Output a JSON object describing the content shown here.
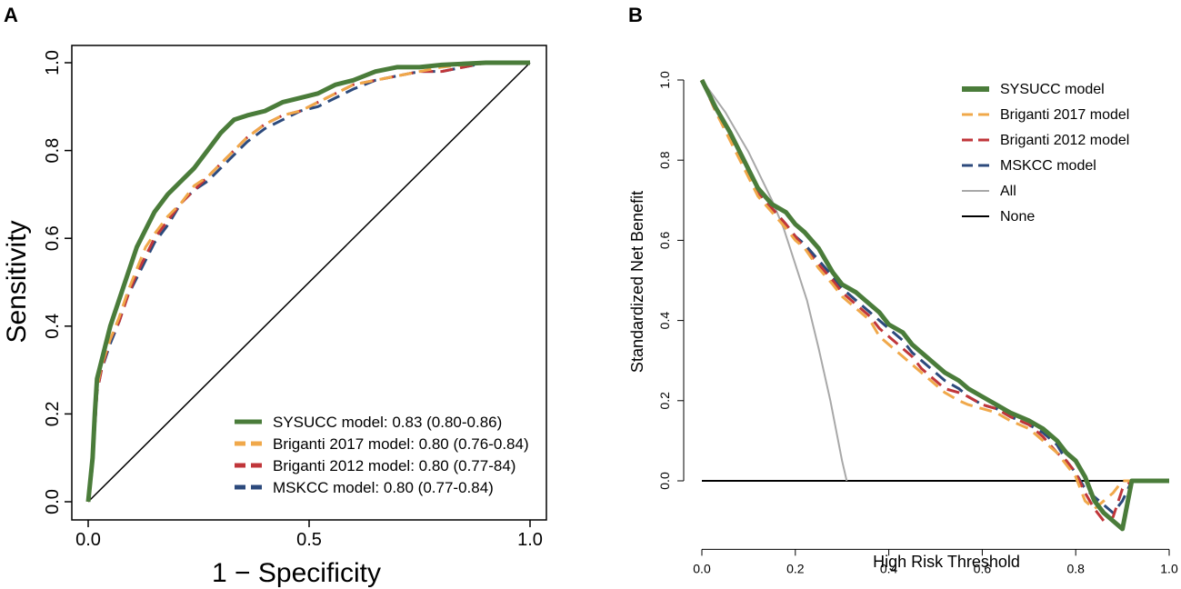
{
  "chart_data": [
    {
      "panel": "A",
      "type": "line",
      "title": "",
      "xlabel": "1 − Specificity",
      "ylabel": "Sensitivity",
      "xlim": [
        0,
        1
      ],
      "ylim": [
        0,
        1
      ],
      "xticks": [
        "0.0",
        "0.5",
        "1.0"
      ],
      "yticks": [
        "0.0",
        "0.2",
        "0.4",
        "0.6",
        "0.8",
        "1.0"
      ],
      "legend_position": "bottom-right",
      "reference_line": "diagonal",
      "series": [
        {
          "name": "SYSUCC model",
          "legend_label": "SYSUCC model: 0.83 (0.80-0.86)",
          "color": "#4a7c3a",
          "dash": "solid",
          "x": [
            0,
            0.01,
            0.015,
            0.02,
            0.03,
            0.05,
            0.07,
            0.09,
            0.11,
            0.13,
            0.15,
            0.18,
            0.21,
            0.24,
            0.27,
            0.3,
            0.33,
            0.36,
            0.4,
            0.44,
            0.48,
            0.52,
            0.56,
            0.6,
            0.65,
            0.7,
            0.75,
            0.8,
            0.9,
            1.0
          ],
          "y": [
            0,
            0.1,
            0.2,
            0.28,
            0.32,
            0.4,
            0.46,
            0.52,
            0.58,
            0.62,
            0.66,
            0.7,
            0.73,
            0.76,
            0.8,
            0.84,
            0.87,
            0.88,
            0.89,
            0.91,
            0.92,
            0.93,
            0.95,
            0.96,
            0.98,
            0.99,
            0.99,
            0.995,
            1.0,
            1.0
          ]
        },
        {
          "name": "Briganti 2017 model",
          "legend_label": "Briganti 2017 model: 0.80 (0.76-0.84)",
          "color": "#f0a84a",
          "dash": "long",
          "x": [
            0,
            0.01,
            0.015,
            0.02,
            0.03,
            0.05,
            0.07,
            0.09,
            0.11,
            0.13,
            0.15,
            0.18,
            0.21,
            0.24,
            0.27,
            0.3,
            0.33,
            0.36,
            0.4,
            0.44,
            0.48,
            0.52,
            0.56,
            0.6,
            0.65,
            0.7,
            0.75,
            0.8,
            0.9,
            1.0
          ],
          "y": [
            0,
            0.09,
            0.18,
            0.26,
            0.31,
            0.37,
            0.42,
            0.48,
            0.53,
            0.58,
            0.61,
            0.65,
            0.68,
            0.72,
            0.74,
            0.77,
            0.8,
            0.83,
            0.86,
            0.88,
            0.89,
            0.91,
            0.93,
            0.95,
            0.96,
            0.97,
            0.98,
            0.99,
            1.0,
            1.0
          ]
        },
        {
          "name": "Briganti 2012 model",
          "legend_label": "Briganti 2012 model: 0.80 (0.77-84)",
          "color": "#c0363a",
          "dash": "long",
          "x": [
            0,
            0.01,
            0.015,
            0.02,
            0.03,
            0.05,
            0.07,
            0.09,
            0.11,
            0.13,
            0.15,
            0.18,
            0.21,
            0.24,
            0.27,
            0.3,
            0.33,
            0.36,
            0.4,
            0.44,
            0.48,
            0.52,
            0.56,
            0.6,
            0.65,
            0.7,
            0.75,
            0.8,
            0.9,
            1.0
          ],
          "y": [
            0,
            0.09,
            0.17,
            0.25,
            0.3,
            0.37,
            0.41,
            0.47,
            0.52,
            0.56,
            0.6,
            0.64,
            0.68,
            0.71,
            0.74,
            0.77,
            0.8,
            0.83,
            0.86,
            0.88,
            0.89,
            0.91,
            0.93,
            0.95,
            0.96,
            0.97,
            0.98,
            0.98,
            1.0,
            1.0
          ]
        },
        {
          "name": "MSKCC model",
          "legend_label": "MSKCC model: 0.80 (0.77-0.84)",
          "color": "#2c4a7c",
          "dash": "long",
          "x": [
            0,
            0.01,
            0.015,
            0.02,
            0.03,
            0.05,
            0.07,
            0.09,
            0.11,
            0.13,
            0.15,
            0.18,
            0.21,
            0.24,
            0.27,
            0.3,
            0.33,
            0.36,
            0.4,
            0.44,
            0.48,
            0.52,
            0.56,
            0.6,
            0.65,
            0.7,
            0.75,
            0.8,
            0.9,
            1.0
          ],
          "y": [
            0,
            0.08,
            0.17,
            0.25,
            0.3,
            0.36,
            0.41,
            0.47,
            0.51,
            0.55,
            0.59,
            0.63,
            0.68,
            0.71,
            0.73,
            0.76,
            0.79,
            0.82,
            0.85,
            0.87,
            0.89,
            0.9,
            0.92,
            0.94,
            0.96,
            0.97,
            0.98,
            0.98,
            1.0,
            1.0
          ]
        }
      ]
    },
    {
      "panel": "B",
      "type": "line",
      "title": "",
      "xlabel": "High Risk Threshold",
      "ylabel": "Standardized Net Benefit",
      "xlim": [
        0,
        1
      ],
      "ylim": [
        -0.13,
        1.05
      ],
      "xticks": [
        "0.0",
        "0.2",
        "0.4",
        "0.6",
        "0.8",
        "1.0"
      ],
      "yticks": [
        "0.0",
        "0.2",
        "0.4",
        "0.6",
        "0.8",
        "1.0"
      ],
      "legend_position": "top-right",
      "series": [
        {
          "name": "SYSUCC model",
          "color": "#4a7c3a",
          "dash": "solid",
          "x": [
            0,
            0.03,
            0.06,
            0.09,
            0.12,
            0.15,
            0.18,
            0.2,
            0.22,
            0.25,
            0.28,
            0.3,
            0.33,
            0.36,
            0.38,
            0.4,
            0.43,
            0.45,
            0.47,
            0.5,
            0.52,
            0.55,
            0.57,
            0.6,
            0.63,
            0.66,
            0.7,
            0.73,
            0.76,
            0.78,
            0.8,
            0.82,
            0.84,
            0.86,
            0.88,
            0.9,
            0.92,
            0.94,
            1.0
          ],
          "y": [
            1.0,
            0.93,
            0.87,
            0.8,
            0.73,
            0.69,
            0.67,
            0.64,
            0.62,
            0.58,
            0.52,
            0.49,
            0.47,
            0.44,
            0.42,
            0.39,
            0.37,
            0.34,
            0.32,
            0.29,
            0.27,
            0.25,
            0.23,
            0.21,
            0.19,
            0.17,
            0.15,
            0.13,
            0.1,
            0.07,
            0.05,
            0.01,
            -0.05,
            -0.08,
            -0.1,
            -0.12,
            0.0,
            0.0,
            0.0
          ]
        },
        {
          "name": "Briganti 2017 model",
          "color": "#f0a84a",
          "dash": "long",
          "x": [
            0,
            0.03,
            0.06,
            0.09,
            0.12,
            0.15,
            0.18,
            0.2,
            0.22,
            0.25,
            0.28,
            0.3,
            0.33,
            0.36,
            0.38,
            0.4,
            0.43,
            0.45,
            0.47,
            0.5,
            0.52,
            0.55,
            0.57,
            0.6,
            0.63,
            0.66,
            0.7,
            0.73,
            0.76,
            0.78,
            0.8,
            0.82,
            0.84,
            0.86,
            0.88,
            0.9,
            0.92,
            0.94,
            1.0
          ],
          "y": [
            1.0,
            0.92,
            0.85,
            0.78,
            0.71,
            0.67,
            0.63,
            0.6,
            0.58,
            0.53,
            0.49,
            0.46,
            0.43,
            0.4,
            0.36,
            0.34,
            0.31,
            0.29,
            0.27,
            0.24,
            0.22,
            0.2,
            0.19,
            0.18,
            0.17,
            0.15,
            0.13,
            0.1,
            0.07,
            0.04,
            0.01,
            -0.05,
            -0.07,
            -0.05,
            -0.03,
            0.0,
            0.0,
            0.0,
            0.0
          ]
        },
        {
          "name": "Briganti 2012 model",
          "color": "#c0363a",
          "dash": "long",
          "x": [
            0,
            0.03,
            0.06,
            0.09,
            0.12,
            0.15,
            0.18,
            0.2,
            0.22,
            0.25,
            0.28,
            0.3,
            0.33,
            0.36,
            0.38,
            0.4,
            0.43,
            0.45,
            0.47,
            0.5,
            0.52,
            0.55,
            0.57,
            0.6,
            0.63,
            0.66,
            0.7,
            0.73,
            0.76,
            0.78,
            0.8,
            0.82,
            0.84,
            0.86,
            0.88,
            0.9,
            0.92,
            0.94,
            1.0
          ],
          "y": [
            1.0,
            0.92,
            0.86,
            0.79,
            0.72,
            0.68,
            0.64,
            0.61,
            0.58,
            0.54,
            0.5,
            0.47,
            0.44,
            0.41,
            0.38,
            0.36,
            0.33,
            0.31,
            0.28,
            0.25,
            0.23,
            0.22,
            0.21,
            0.19,
            0.18,
            0.16,
            0.14,
            0.11,
            0.07,
            0.05,
            0.02,
            -0.03,
            -0.07,
            -0.1,
            -0.09,
            -0.02,
            0.0,
            0.0,
            0.0
          ]
        },
        {
          "name": "MSKCC model",
          "color": "#2c4a7c",
          "dash": "long",
          "x": [
            0,
            0.03,
            0.06,
            0.09,
            0.12,
            0.15,
            0.18,
            0.2,
            0.22,
            0.25,
            0.28,
            0.3,
            0.33,
            0.36,
            0.38,
            0.4,
            0.43,
            0.45,
            0.47,
            0.5,
            0.52,
            0.55,
            0.57,
            0.6,
            0.63,
            0.66,
            0.7,
            0.73,
            0.76,
            0.78,
            0.8,
            0.82,
            0.84,
            0.86,
            0.88,
            0.9,
            0.92,
            0.94,
            1.0
          ],
          "y": [
            1.0,
            0.92,
            0.86,
            0.79,
            0.72,
            0.68,
            0.64,
            0.61,
            0.59,
            0.55,
            0.51,
            0.48,
            0.45,
            0.42,
            0.4,
            0.38,
            0.35,
            0.32,
            0.3,
            0.27,
            0.25,
            0.23,
            0.21,
            0.19,
            0.18,
            0.16,
            0.14,
            0.12,
            0.09,
            0.05,
            0.02,
            -0.02,
            -0.04,
            -0.06,
            -0.08,
            -0.05,
            0.0,
            0.0,
            0.0
          ]
        },
        {
          "name": "All",
          "color": "#a8a8a8",
          "dash": "solid",
          "x": [
            0,
            0.025,
            0.05,
            0.075,
            0.1,
            0.125,
            0.15,
            0.175,
            0.2,
            0.225,
            0.25,
            0.275,
            0.3,
            0.31
          ],
          "y": [
            1.0,
            0.96,
            0.92,
            0.87,
            0.82,
            0.76,
            0.7,
            0.63,
            0.54,
            0.45,
            0.33,
            0.2,
            0.05,
            0.0
          ]
        },
        {
          "name": "None",
          "color": "#000000",
          "dash": "solid",
          "x": [
            0,
            1
          ],
          "y": [
            0,
            0
          ]
        }
      ]
    }
  ]
}
